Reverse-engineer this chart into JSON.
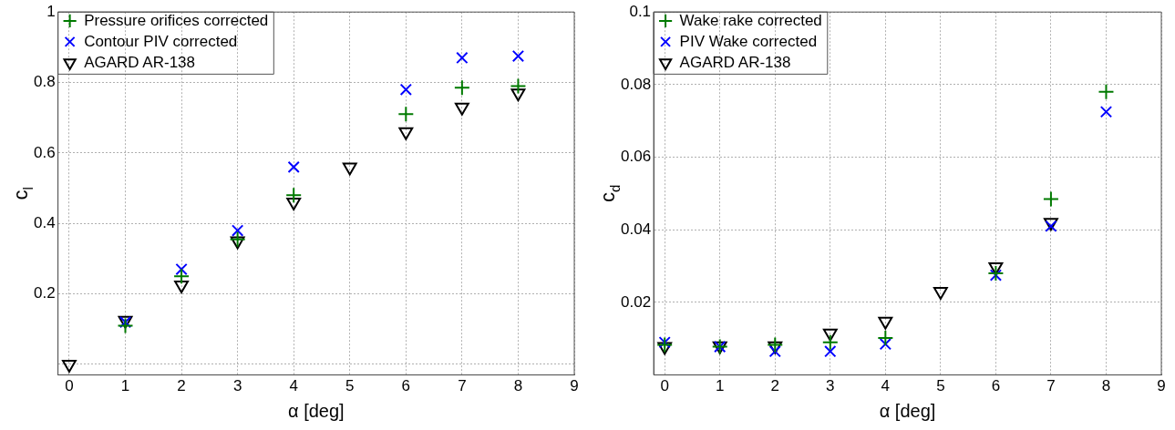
{
  "chart_data": [
    {
      "type": "scatter",
      "xlabel": "α [deg]",
      "ylabel": "c$_{l}$",
      "xlim": [
        -0.2,
        9
      ],
      "xticks": [
        0,
        1,
        2,
        3,
        4,
        5,
        6,
        7,
        8,
        9
      ],
      "ylim": [
        -0.03,
        1
      ],
      "yticks": [
        {
          "value": 0,
          "label": null
        },
        0.2,
        0.4,
        0.6,
        0.8,
        1
      ],
      "grid": true,
      "legend": "top left",
      "series": [
        {
          "name": "Pressure orifices corrected",
          "color": "#007a00",
          "marker": "cross",
          "x": [
            1,
            2,
            3,
            4,
            6,
            7,
            8
          ],
          "values": [
            0.11,
            0.25,
            0.355,
            0.48,
            0.71,
            0.785,
            0.79
          ]
        },
        {
          "name": "Contour PIV corrected",
          "color": "#0000ff",
          "marker": "x",
          "x": [
            1,
            2,
            3,
            4,
            6,
            7,
            8
          ],
          "values": [
            0.12,
            0.27,
            0.38,
            0.56,
            0.78,
            0.87,
            0.875
          ]
        },
        {
          "name": "AGARD AR-138",
          "color": "#000000",
          "marker": "triangle",
          "x": [
            0,
            1,
            2,
            3,
            4,
            5,
            6,
            7,
            8
          ],
          "values": [
            0.0,
            0.125,
            0.225,
            0.35,
            0.46,
            0.56,
            0.66,
            0.73,
            0.77
          ]
        }
      ]
    },
    {
      "type": "scatter",
      "xlabel": "α [deg]",
      "ylabel": "c$_{d}$",
      "xlim": [
        -0.2,
        9
      ],
      "xticks": [
        0,
        1,
        2,
        3,
        4,
        5,
        6,
        7,
        8,
        9
      ],
      "ylim": [
        0,
        0.1
      ],
      "yticks": [
        {
          "value": 0,
          "label": null
        },
        0.02,
        0.04,
        0.06,
        0.08,
        0.1
      ],
      "grid": true,
      "legend": "top left",
      "series": [
        {
          "name": "Wake rake corrected",
          "color": "#007a00",
          "marker": "cross",
          "x": [
            0,
            1,
            2,
            3,
            4,
            6,
            7,
            8
          ],
          "values": [
            0.0083,
            0.0078,
            0.0083,
            0.009,
            0.0102,
            0.028,
            0.0485,
            0.078
          ]
        },
        {
          "name": "PIV Wake corrected",
          "color": "#0000ff",
          "marker": "x",
          "x": [
            0,
            1,
            2,
            3,
            4,
            6,
            7,
            8
          ],
          "values": [
            0.009,
            0.0078,
            0.0065,
            0.0065,
            0.0085,
            0.0275,
            0.041,
            0.0725
          ]
        },
        {
          "name": "AGARD AR-138",
          "color": "#000000",
          "marker": "triangle",
          "x": [
            0,
            1,
            2,
            3,
            4,
            5,
            6,
            7
          ],
          "values": [
            0.0078,
            0.008,
            0.008,
            0.0115,
            0.0148,
            0.023,
            0.0298,
            0.042
          ]
        }
      ]
    }
  ]
}
